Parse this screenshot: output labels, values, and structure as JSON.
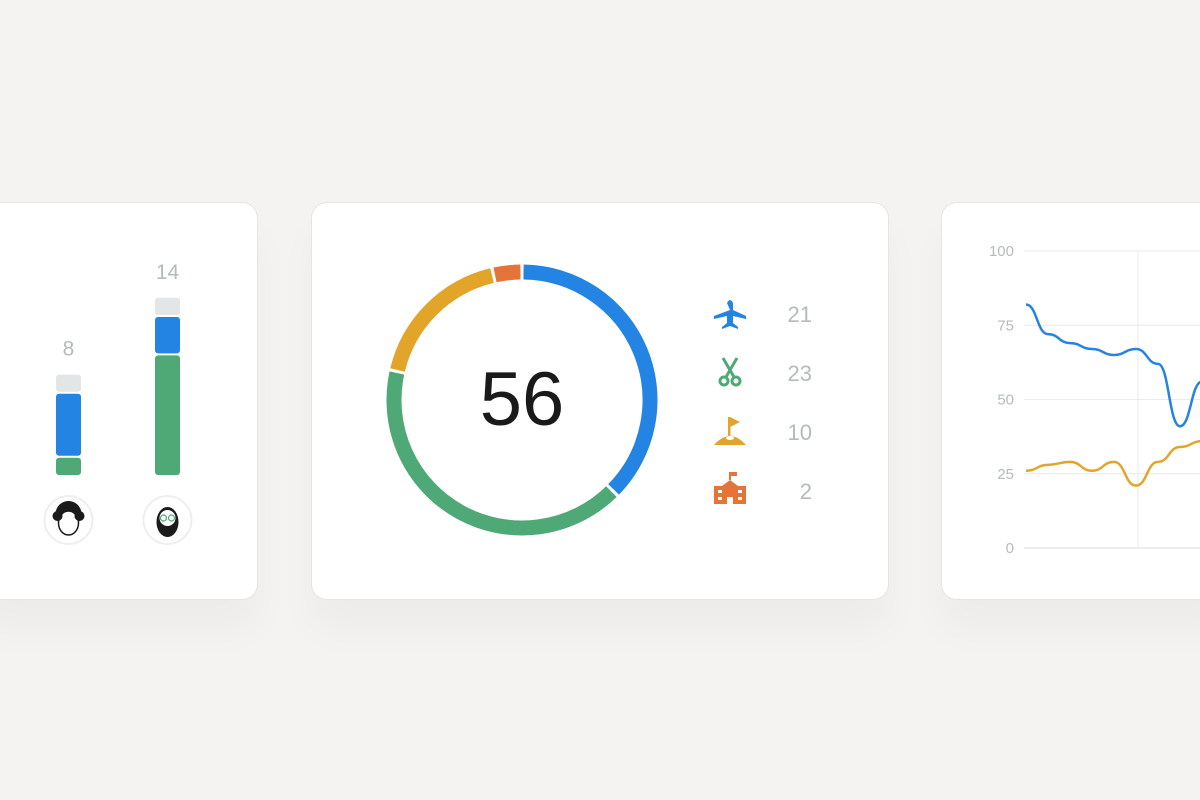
{
  "colors": {
    "blue": "#2484e4",
    "green": "#4fa977",
    "yellow": "#e2a52a",
    "orange": "#e5743a",
    "gray": "#e3e6e6",
    "text": "#b3bcb8"
  },
  "bars_card": {
    "bars": [
      {
        "total": "8",
        "segments": {
          "green": 1.5,
          "blue": 5,
          "gray": 1.5
        },
        "avatar": "curly-hair-person-avatar"
      },
      {
        "total": "14",
        "segments": {
          "green": 9.5,
          "blue": 3,
          "gray": 1.5
        },
        "avatar": "bearded-glasses-person-avatar"
      }
    ]
  },
  "donut_card": {
    "total": "56",
    "items": [
      {
        "icon": "airplane-icon",
        "value": "21",
        "color": "#2484e4"
      },
      {
        "icon": "scissors-icon",
        "value": "23",
        "color": "#4fa977"
      },
      {
        "icon": "golf-flag-icon",
        "value": "10",
        "color": "#e2a52a"
      },
      {
        "icon": "school-icon",
        "value": "2",
        "color": "#e5743a"
      }
    ]
  },
  "chart_data": {
    "type": "line",
    "ylim": [
      0,
      100
    ],
    "yticks": [
      "100",
      "75",
      "50",
      "25",
      "0"
    ],
    "grid": true,
    "x": [
      0,
      1,
      2,
      3,
      4,
      5,
      6,
      7,
      8
    ],
    "series": [
      {
        "color": "#2484e4",
        "values": [
          82,
          72,
          69,
          67,
          65,
          67,
          62,
          41,
          56
        ]
      },
      {
        "color": "#e2a52a",
        "values": [
          26,
          28,
          29,
          26,
          29,
          21,
          29,
          34,
          36
        ]
      }
    ]
  }
}
